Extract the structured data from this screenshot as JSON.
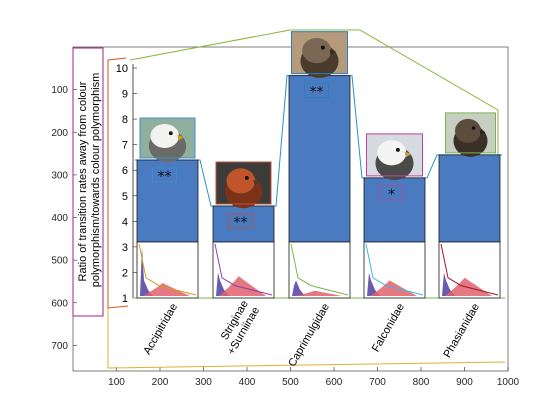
{
  "chart_data": {
    "type": "bar",
    "ylabel_lines": [
      "Ratio of transition rates away from colour",
      "polymorphism/towards colour polymorphism"
    ],
    "image_axes": {
      "x_ticks": [
        100,
        200,
        300,
        400,
        500,
        600,
        700,
        800,
        900,
        1000
      ],
      "y_ticks": [
        100,
        200,
        300,
        400,
        500,
        600,
        700
      ],
      "xlim": [
        0,
        1000
      ],
      "ylim": [
        0,
        760
      ]
    },
    "inner_axis": {
      "ticks": [
        1,
        2,
        3,
        4,
        5,
        6,
        7,
        8,
        9,
        10
      ],
      "ylim": [
        1,
        10
      ]
    },
    "categories": [
      "Accipitridae",
      "Striginae +Surniinae",
      "Caprimulgidae",
      "Falconidae",
      "Phasianidae"
    ],
    "category_lines": [
      [
        "Accipitridae"
      ],
      [
        "Striginae",
        "+Surniinae"
      ],
      [
        "Caprimulgidae"
      ],
      [
        "Falconidae"
      ],
      [
        "Phasianidae"
      ]
    ],
    "values": [
      6.4,
      4.6,
      9.7,
      5.7,
      6.6
    ],
    "significance": [
      "**",
      "**",
      "**",
      "*",
      ""
    ],
    "frame_colors": [
      "#3f8fd0",
      "#c14f38",
      "#2a7fbd",
      "#c040a0",
      "#7ab648"
    ],
    "density_line_colors": [
      "#d0a020",
      "#8b3fa8",
      "#7ab648",
      "#3fb8dd",
      "#a2142f"
    ],
    "bar_color": "#4a7bc1",
    "hist_colors": [
      "#6a5bb0",
      "#e0606a"
    ],
    "photo_names": [
      "hawk-photo",
      "owl-photo",
      "nightjar-photo",
      "falcon-photo",
      "grouse-photo"
    ]
  }
}
